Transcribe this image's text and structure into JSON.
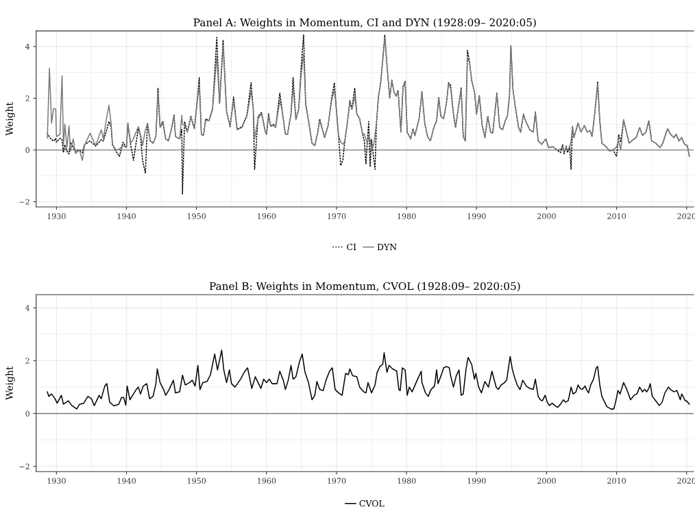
{
  "chart_data": [
    {
      "type": "line",
      "title": "Panel A: Weights in Momentum, CI and DYN (1928:09– 2020:05)",
      "ylabel": "Weight",
      "x": [
        1928.7,
        1929.0,
        1929.3,
        1929.6,
        1929.9,
        1930.0,
        1930.5,
        1930.8,
        1931.0,
        1931.2,
        1931.5,
        1931.8,
        1932.0,
        1932.4,
        1932.7,
        1933.3,
        1933.7,
        1934.0,
        1934.8,
        1935.6,
        1936.4,
        1936.7,
        1937.2,
        1937.5,
        1937.8,
        1938.0,
        1938.5,
        1939.0,
        1939.5,
        1940.0,
        1940.2,
        1940.6,
        1941.0,
        1941.7,
        1942.0,
        1942.3,
        1942.7,
        1943.0,
        1943.4,
        1943.8,
        1944.2,
        1944.5,
        1944.8,
        1945.2,
        1945.6,
        1946.0,
        1946.4,
        1946.8,
        1947.0,
        1947.6,
        1947.9,
        1948.0,
        1948.3,
        1948.7,
        1949.2,
        1949.7,
        1950.2,
        1950.4,
        1950.7,
        1951.0,
        1951.3,
        1951.8,
        1952.3,
        1952.9,
        1953.3,
        1953.8,
        1954.3,
        1954.8,
        1955.3,
        1955.8,
        1956.5,
        1957.2,
        1957.8,
        1958.1,
        1958.3,
        1958.8,
        1959.3,
        1959.8,
        1960.0,
        1960.3,
        1960.6,
        1961.0,
        1961.3,
        1961.9,
        1962.2,
        1962.7,
        1963.0,
        1963.5,
        1963.8,
        1964.2,
        1964.6,
        1964.9,
        1965.3,
        1965.6,
        1966.0,
        1966.5,
        1966.9,
        1967.3,
        1967.6,
        1968.0,
        1968.3,
        1968.8,
        1969.3,
        1969.7,
        1970.0,
        1970.3,
        1970.6,
        1970.9,
        1971.2,
        1971.5,
        1971.9,
        1972.2,
        1972.6,
        1972.9,
        1973.3,
        1973.7,
        1974.0,
        1974.2,
        1974.4,
        1974.6,
        1974.8,
        1975.0,
        1975.3,
        1975.5,
        1975.7,
        1976.0,
        1976.3,
        1976.6,
        1976.9,
        1977.2,
        1977.6,
        1977.9,
        1978.2,
        1978.5,
        1978.8,
        1979.2,
        1979.5,
        1979.8,
        1980.1,
        1980.6,
        1980.9,
        1981.2,
        1981.8,
        1982.2,
        1982.6,
        1983.0,
        1983.4,
        1983.9,
        1984.3,
        1984.6,
        1984.9,
        1985.3,
        1985.7,
        1986.0,
        1986.3,
        1986.7,
        1987.0,
        1987.5,
        1987.8,
        1988.1,
        1988.4,
        1988.7,
        1989.0,
        1989.3,
        1989.7,
        1990.0,
        1990.4,
        1990.8,
        1991.2,
        1991.6,
        1992.0,
        1992.3,
        1992.6,
        1992.9,
        1993.3,
        1993.7,
        1994.1,
        1994.4,
        1994.7,
        1994.9,
        1995.2,
        1995.5,
        1996.0,
        1996.3,
        1996.7,
        1997.0,
        1997.6,
        1998.1,
        1998.4,
        1998.8,
        1999.3,
        1999.9,
        2000.3,
        2000.9,
        2001.5,
        2002.0,
        2002.3,
        2002.5,
        2002.8,
        2003.0,
        2003.3,
        2003.5,
        2003.7,
        2003.9,
        2004.5,
        2004.9,
        2005.4,
        2005.8,
        2006.2,
        2006.5,
        2006.9,
        2007.3,
        2007.6,
        2007.9,
        2008.5,
        2009.0,
        2009.5,
        2010.0,
        2010.3,
        2010.6,
        2011.0,
        2011.4,
        2011.8,
        2012.3,
        2012.8,
        2013.3,
        2013.7,
        2014.2,
        2014.6,
        2015.0,
        2015.6,
        2016.2,
        2016.6,
        2017.0,
        2017.3,
        2017.7,
        2018.2,
        2018.5,
        2018.9,
        2019.3,
        2019.7,
        2020.1,
        2020.4
      ],
      "series": [
        {
          "name": "CI",
          "color": "#000000",
          "line_style": "dotted",
          "values": [
            0.65,
            0.5,
            0.4,
            0.35,
            0.45,
            0.3,
            0.45,
            0.4,
            -0.1,
            0.2,
            -0.05,
            -0.15,
            0.3,
            0.1,
            -0.05,
            0,
            -0.1,
            0.2,
            0.35,
            0.15,
            0.4,
            0.35,
            0.8,
            1.1,
            0.9,
            0.2,
            -0.05,
            -0.25,
            0.3,
            0.1,
            1.0,
            0.2,
            -0.4,
            0.85,
            0.55,
            -0.4,
            -0.9,
            1.05,
            0.35,
            0.26,
            0.52,
            2.4,
            0.9,
            1.1,
            0.43,
            0.35,
            0.78,
            1.35,
            0.52,
            0.43,
            0.8,
            -1.7,
            1.1,
            0.7,
            1.3,
            0.82,
            2.2,
            2.8,
            0.6,
            0.56,
            1.2,
            1.15,
            1.6,
            4.35,
            1.8,
            4.25,
            1.5,
            0.9,
            2.05,
            0.8,
            0.9,
            1.35,
            2.6,
            1.6,
            -0.75,
            1.3,
            1.45,
            0.74,
            0.6,
            1.4,
            0.91,
            1.0,
            0.87,
            2.2,
            1.6,
            0.6,
            0.6,
            1.4,
            2.8,
            1.17,
            1.6,
            3.0,
            4.45,
            1.8,
            1.13,
            0.26,
            0.17,
            0.65,
            1.2,
            0.78,
            0.48,
            0.95,
            2.0,
            2.6,
            1.5,
            0.5,
            -0.6,
            -0.4,
            0.4,
            0.95,
            1.9,
            1.6,
            2.4,
            1.4,
            1.21,
            0.65,
            0.3,
            -0.55,
            0.3,
            1.1,
            -0.65,
            0.4,
            -0.3,
            -0.75,
            1.0,
            2.1,
            2.6,
            3.5,
            4.45,
            3.3,
            2.0,
            2.7,
            2.25,
            2.08,
            2.3,
            0.69,
            2.45,
            2.65,
            0.69,
            0.43,
            0.82,
            0.56,
            1.21,
            2.25,
            1.04,
            0.52,
            0.35,
            0.87,
            1.13,
            2.05,
            1.3,
            1.21,
            1.82,
            2.6,
            2.5,
            1.39,
            0.87,
            1.82,
            2.4,
            0.52,
            0.35,
            3.85,
            3.4,
            2.7,
            2.25,
            1.39,
            2.1,
            0.95,
            0.48,
            1.3,
            0.69,
            0.65,
            1.39,
            2.2,
            0.87,
            0.78,
            1.13,
            1.3,
            2.08,
            4.05,
            2.34,
            1.73,
            0.87,
            0.69,
            1.39,
            1.13,
            0.78,
            0.69,
            1.47,
            0.35,
            0.22,
            0.43,
            0.09,
            0.13,
            0,
            -0.1,
            0.2,
            -0.15,
            0.15,
            -0.1,
            0.15,
            -0.75,
            0.91,
            0.48,
            1.04,
            0.69,
            0.95,
            0.69,
            0.75,
            0.52,
            1.47,
            2.65,
            1.13,
            0.26,
            0.13,
            -0.04,
            0,
            -0.25,
            0.6,
            0.3,
            1.17,
            0.69,
            0.26,
            0.39,
            0.48,
            0.87,
            0.56,
            0.69,
            1.13,
            0.35,
            0.26,
            0.09,
            0.26,
            0.61,
            0.82,
            0.61,
            0.48,
            0.61,
            0.35,
            0.48,
            0.22,
            0.17,
            -0.26
          ]
        },
        {
          "name": "DYN",
          "color": "#7a7a7a",
          "line_style": "solid",
          "values": [
            0.46,
            3.16,
            1.04,
            1.6,
            1.58,
            0.52,
            0.6,
            2.87,
            0.17,
            1.0,
            0.1,
            0.93,
            -0.04,
            0.43,
            -0.13,
            0,
            -0.4,
            0.17,
            0.65,
            0.17,
            0.78,
            0.43,
            1.3,
            1.73,
            1.04,
            0.22,
            0,
            0.04,
            0.17,
            0.09,
            1.04,
            0.26,
            0.43,
            0.9,
            0.6,
            0.17,
            0.78,
            1.0,
            0.35,
            0.26,
            0.52,
            2.16,
            0.87,
            1.04,
            0.43,
            0.35,
            0.78,
            1.3,
            0.52,
            0.43,
            1.34,
            1.0,
            0.95,
            0.69,
            1.26,
            0.82,
            2.08,
            2.47,
            0.6,
            0.56,
            1.13,
            1.13,
            1.56,
            3.64,
            1.82,
            4.03,
            1.47,
            0.95,
            1.9,
            0.78,
            0.87,
            1.3,
            2.25,
            1.65,
            0.43,
            1.21,
            1.39,
            0.74,
            0.6,
            1.3,
            0.91,
            0.95,
            0.87,
            1.9,
            1.56,
            0.6,
            0.6,
            1.39,
            2.42,
            1.17,
            1.56,
            2.77,
            3.72,
            1.73,
            1.13,
            0.26,
            0.17,
            0.65,
            1.13,
            0.78,
            0.48,
            0.95,
            1.9,
            2.34,
            1.47,
            0.56,
            0.3,
            0.22,
            0.35,
            0.95,
            1.82,
            1.56,
            2.08,
            1.39,
            1.21,
            0.65,
            0.6,
            0.4,
            0.26,
            0.56,
            0.4,
            0,
            0.17,
            0.6,
            1.04,
            2.08,
            2.56,
            3.46,
            4.33,
            3.29,
            2.0,
            2.68,
            2.25,
            2.08,
            2.25,
            0.69,
            2.42,
            2.6,
            0.69,
            0.43,
            0.82,
            0.56,
            1.21,
            2.2,
            1.04,
            0.52,
            0.35,
            0.87,
            1.13,
            2.0,
            1.3,
            1.21,
            1.82,
            2.56,
            2.38,
            1.39,
            0.87,
            1.82,
            2.34,
            0.52,
            0.35,
            3.55,
            3.38,
            2.68,
            2.25,
            1.39,
            2.08,
            0.95,
            0.48,
            1.3,
            0.69,
            0.65,
            1.39,
            2.2,
            0.87,
            0.78,
            1.13,
            1.3,
            2.08,
            4.03,
            2.34,
            1.73,
            0.87,
            0.69,
            1.39,
            1.13,
            0.78,
            0.69,
            1.47,
            0.35,
            0.22,
            0.43,
            0.09,
            0.13,
            0,
            0.04,
            0.1,
            -0.09,
            0.1,
            0,
            0.1,
            0.35,
            0.91,
            0.48,
            1.04,
            0.69,
            0.95,
            0.69,
            0.75,
            0.52,
            1.47,
            2.56,
            1.13,
            0.26,
            0.13,
            -0.04,
            0,
            0.13,
            0.35,
            0,
            1.17,
            0.69,
            0.26,
            0.39,
            0.48,
            0.87,
            0.56,
            0.69,
            1.13,
            0.35,
            0.26,
            0.09,
            0.26,
            0.61,
            0.82,
            0.61,
            0.48,
            0.61,
            0.35,
            0.48,
            0.22,
            0.17,
            -0.26
          ]
        }
      ],
      "xlim": [
        1927.1,
        2021.0
      ],
      "ylim": [
        -2.2,
        4.6
      ],
      "xticks": [
        1930,
        1940,
        1950,
        1960,
        1970,
        1980,
        1990,
        2000,
        2010,
        2020
      ],
      "yticks": [
        {
          "value": -2,
          "label": "−2"
        },
        0,
        2,
        4
      ],
      "ref_lines": [
        {
          "axis": "y",
          "value": 0,
          "color": "#7f7f7f"
        }
      ],
      "grid": true,
      "legend": "bottom"
    },
    {
      "type": "line",
      "title": "Panel B: Weights in Momentum, CVOL (1928:09– 2020:05)",
      "ylabel": "Weight",
      "x": [
        1928.7,
        1928.9,
        1929.3,
        1929.8,
        1930.1,
        1930.7,
        1931.0,
        1931.7,
        1932.2,
        1932.9,
        1933.3,
        1933.9,
        1934.5,
        1935.0,
        1935.4,
        1936.1,
        1936.4,
        1936.9,
        1937.2,
        1937.6,
        1938.2,
        1938.9,
        1939.3,
        1939.6,
        1939.9,
        1940.1,
        1940.5,
        1941.0,
        1941.4,
        1941.7,
        1942.0,
        1942.4,
        1942.9,
        1943.3,
        1943.8,
        1944.2,
        1944.4,
        1944.8,
        1945.3,
        1945.6,
        1946.1,
        1946.7,
        1947.0,
        1947.6,
        1948.0,
        1948.4,
        1949.0,
        1949.4,
        1949.8,
        1950.2,
        1950.5,
        1950.9,
        1951.5,
        1952.0,
        1952.6,
        1953.0,
        1953.6,
        1953.9,
        1954.3,
        1954.7,
        1955.0,
        1955.5,
        1956.3,
        1956.9,
        1957.3,
        1957.9,
        1958.4,
        1958.8,
        1959.2,
        1959.6,
        1960.0,
        1960.4,
        1960.8,
        1961.5,
        1961.9,
        1962.4,
        1962.7,
        1963.1,
        1963.5,
        1963.8,
        1964.2,
        1964.7,
        1965.1,
        1965.5,
        1966.0,
        1966.5,
        1966.9,
        1967.2,
        1967.6,
        1968.1,
        1968.5,
        1969.0,
        1969.4,
        1969.8,
        1970.3,
        1970.8,
        1971.3,
        1971.7,
        1971.9,
        1972.3,
        1972.9,
        1973.3,
        1973.9,
        1974.2,
        1974.5,
        1975.0,
        1975.5,
        1975.8,
        1976.2,
        1976.6,
        1976.8,
        1977.2,
        1977.5,
        1978.0,
        1978.3,
        1978.6,
        1978.9,
        1979.1,
        1979.4,
        1979.8,
        1980.1,
        1980.4,
        1980.8,
        1981.3,
        1982.1,
        1982.2,
        1982.7,
        1983.1,
        1983.5,
        1984.0,
        1984.3,
        1984.5,
        1985.1,
        1985.3,
        1985.7,
        1986.1,
        1986.3,
        1986.7,
        1987.1,
        1987.5,
        1987.8,
        1988.1,
        1988.5,
        1988.8,
        1989.3,
        1989.7,
        1989.9,
        1990.3,
        1990.7,
        1991.2,
        1991.7,
        1992.2,
        1992.5,
        1992.8,
        1993.1,
        1993.5,
        1994.0,
        1994.3,
        1994.8,
        1995.1,
        1995.4,
        1995.8,
        1996.2,
        1996.6,
        1997.1,
        1997.6,
        1998.1,
        1998.4,
        1998.8,
        1999.1,
        1999.4,
        1999.8,
        2000.1,
        2000.4,
        2000.8,
        2001.2,
        2001.6,
        2002.1,
        2002.4,
        2002.7,
        2003.1,
        2003.5,
        2003.8,
        2004.2,
        2004.5,
        2004.8,
        2005.1,
        2005.5,
        2005.7,
        2006.0,
        2006.3,
        2006.7,
        2007.1,
        2007.3,
        2007.6,
        2007.9,
        2008.3,
        2008.6,
        2009.2,
        2009.6,
        2009.9,
        2010.2,
        2010.5,
        2011.0,
        2011.4,
        2011.7,
        2012.0,
        2012.5,
        2012.9,
        2013.3,
        2013.7,
        2014.0,
        2014.3,
        2014.6,
        2014.8,
        2015.1,
        2015.6,
        2016.1,
        2016.5,
        2016.9,
        2017.4,
        2017.7,
        2018.2,
        2018.6,
        2018.8,
        2019.1,
        2019.3,
        2019.5,
        2019.8,
        2020.0,
        2020.4
      ],
      "series": [
        {
          "name": "CVOL",
          "color": "#000000",
          "line_style": "solid",
          "values": [
            0.82,
            0.65,
            0.74,
            0.56,
            0.39,
            0.69,
            0.35,
            0.48,
            0.3,
            0.17,
            0.35,
            0.39,
            0.65,
            0.56,
            0.3,
            0.69,
            0.56,
            1.04,
            1.13,
            0.43,
            0.29,
            0.35,
            0.61,
            0.61,
            0.32,
            1.04,
            0.52,
            0.74,
            0.91,
            1.0,
            0.74,
            1.04,
            1.13,
            0.56,
            0.65,
            1.13,
            1.69,
            1.17,
            0.91,
            0.69,
            0.91,
            1.26,
            0.78,
            0.82,
            1.45,
            1.08,
            1.17,
            1.26,
            1.04,
            1.82,
            0.91,
            1.17,
            1.21,
            1.47,
            2.25,
            1.65,
            2.4,
            1.65,
            1.17,
            1.65,
            1.13,
            1.0,
            1.3,
            1.6,
            1.73,
            0.95,
            1.39,
            1.17,
            0.95,
            1.3,
            1.17,
            1.3,
            1.13,
            1.13,
            1.6,
            1.26,
            0.91,
            1.26,
            1.82,
            1.3,
            1.39,
            1.95,
            2.25,
            1.56,
            1.17,
            0.52,
            0.69,
            1.21,
            0.91,
            0.87,
            1.26,
            1.6,
            1.73,
            0.91,
            0.78,
            0.69,
            1.52,
            1.47,
            1.69,
            1.43,
            1.39,
            1.0,
            0.82,
            0.78,
            1.17,
            0.78,
            1.08,
            1.56,
            1.78,
            1.86,
            2.3,
            1.56,
            1.82,
            1.69,
            1.65,
            1.6,
            0.91,
            0.87,
            1.73,
            1.65,
            0.69,
            1.0,
            0.82,
            1.13,
            1.6,
            1.17,
            0.78,
            0.65,
            0.91,
            1.04,
            1.65,
            1.13,
            1.56,
            1.73,
            1.78,
            1.73,
            1.43,
            1.0,
            1.43,
            1.65,
            0.69,
            0.74,
            1.69,
            2.12,
            1.86,
            1.3,
            1.52,
            1.0,
            0.78,
            1.21,
            1.0,
            1.6,
            1.3,
            1.0,
            0.91,
            1.08,
            1.17,
            1.26,
            2.16,
            1.69,
            1.39,
            1.08,
            0.91,
            1.26,
            1.04,
            0.95,
            0.91,
            1.3,
            0.65,
            0.52,
            0.48,
            0.69,
            0.43,
            0.3,
            0.39,
            0.3,
            0.23,
            0.39,
            0.52,
            0.43,
            0.49,
            1.0,
            0.74,
            0.82,
            1.08,
            0.95,
            0.91,
            1.04,
            0.91,
            0.78,
            1.08,
            1.3,
            1.73,
            1.78,
            1.08,
            0.65,
            0.43,
            0.26,
            0.17,
            0.17,
            0.48,
            0.87,
            0.74,
            1.17,
            0.95,
            0.74,
            0.52,
            0.69,
            0.74,
            1.0,
            0.82,
            0.91,
            0.82,
            0.95,
            1.13,
            0.65,
            0.48,
            0.3,
            0.43,
            0.78,
            1.0,
            0.91,
            0.82,
            0.87,
            0.74,
            0.52,
            0.74,
            0.65,
            0.48,
            0.48,
            0.35
          ]
        }
      ],
      "xlim": [
        1927.1,
        2021.0
      ],
      "ylim": [
        -2.2,
        4.5
      ],
      "xticks": [
        1930,
        1940,
        1950,
        1960,
        1970,
        1980,
        1990,
        2000,
        2010,
        2020
      ],
      "yticks": [
        {
          "value": -2,
          "label": "−2"
        },
        0,
        2,
        4
      ],
      "ref_lines": [
        {
          "axis": "y",
          "value": 0,
          "color": "#7f7f7f"
        }
      ],
      "grid": true,
      "legend": "bottom"
    }
  ]
}
